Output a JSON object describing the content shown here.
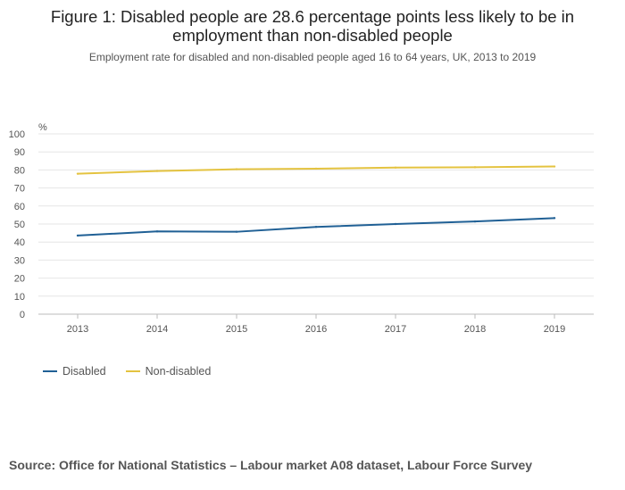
{
  "chart_data": {
    "type": "line",
    "title": "Figure 1: Disabled people are 28.6 percentage points less likely to be in employment than non-disabled people",
    "subtitle": "Employment rate for disabled and non-disabled people aged 16 to 64 years, UK, 2013 to 2019",
    "ylabel": "%",
    "xlabel": "",
    "ylim": [
      0,
      100
    ],
    "y_ticks": [
      "0",
      "10",
      "20",
      "30",
      "40",
      "50",
      "60",
      "70",
      "80",
      "90",
      "100"
    ],
    "categories": [
      "2013",
      "2014",
      "2015",
      "2016",
      "2017",
      "2018",
      "2019"
    ],
    "series": [
      {
        "name": "Disabled",
        "color": "#206095",
        "values": [
          43.6,
          45.9,
          45.7,
          48.4,
          50.0,
          51.4,
          53.3
        ]
      },
      {
        "name": "Non-disabled",
        "color": "#e4c340",
        "values": [
          77.9,
          79.4,
          80.4,
          80.7,
          81.3,
          81.5,
          81.9
        ]
      }
    ],
    "legend_position": "bottom-left",
    "grid": true
  },
  "source": "Source: Office for National Statistics – Labour market A08 dataset, Labour Force Survey"
}
